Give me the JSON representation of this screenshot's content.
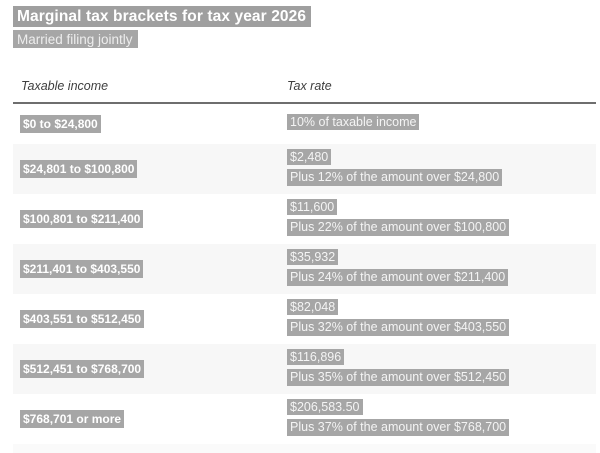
{
  "title": "Marginal tax brackets for tax year 2026",
  "subtitle": "Married filing jointly",
  "table": {
    "columns": {
      "income": "Taxable income",
      "rate": "Tax rate"
    },
    "rows": [
      {
        "income": "$0 to $24,800",
        "rate_lines": [
          "10% of taxable income"
        ]
      },
      {
        "income": "$24,801 to $100,800",
        "rate_lines": [
          "$2,480",
          "Plus 12% of the amount over $24,800"
        ]
      },
      {
        "income": "$100,801 to $211,400",
        "rate_lines": [
          "$11,600",
          "Plus 22% of the amount over $100,800"
        ]
      },
      {
        "income": "$211,401 to $403,550",
        "rate_lines": [
          "$35,932",
          "Plus 24% of the amount over $211,400"
        ]
      },
      {
        "income": "$403,551 to $512,450",
        "rate_lines": [
          "$82,048",
          "Plus 32% of the amount over $403,550"
        ]
      },
      {
        "income": "$512,451 to $768,700",
        "rate_lines": [
          "$116,896",
          "Plus 35% of the amount over $512,450"
        ]
      },
      {
        "income": "$768,701 or more",
        "rate_lines": [
          "$206,583.50",
          "Plus 37% of the amount over $768,700"
        ]
      }
    ]
  },
  "colors": {
    "highlight": "#a6a6a6",
    "row_stripe": "#f7f7f7",
    "header_rule": "#6e6e6e",
    "highlight_text": "#f4f4f4",
    "bold_text": "#ffffff"
  }
}
